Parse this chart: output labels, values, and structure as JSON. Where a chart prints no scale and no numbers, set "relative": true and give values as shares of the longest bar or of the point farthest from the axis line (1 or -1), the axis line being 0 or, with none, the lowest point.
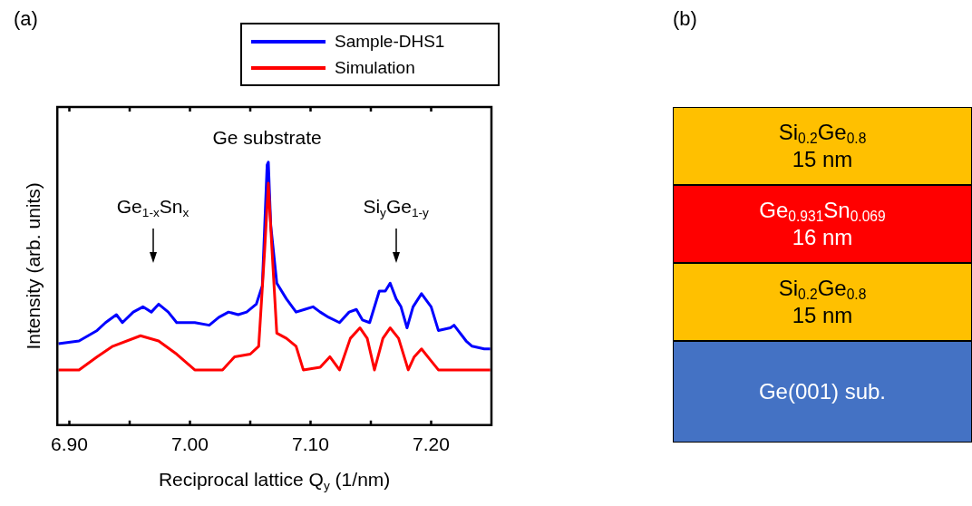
{
  "chart_data": [
    {
      "type": "line",
      "title": "(a)",
      "xlabel": "Reciprocal lattice Q$_{y}$ (1/nm)",
      "ylabel": "Intensity (arb. units)",
      "relative": true,
      "xlim": [
        6.89,
        7.25
      ],
      "xticks": [
        {
          "value": 6.9,
          "label": "6.90"
        },
        {
          "value": 6.95,
          "label": null
        },
        {
          "value": 7.0,
          "label": "7.00"
        },
        {
          "value": 7.05,
          "label": null
        },
        {
          "value": 7.1,
          "label": "7.10"
        },
        {
          "value": 7.15,
          "label": null
        },
        {
          "value": 7.2,
          "label": "7.20"
        }
      ],
      "legend": "top right",
      "grid": false,
      "marker": "none",
      "line_style": "solid",
      "series": [
        {
          "name": "Sample-DHS1",
          "color": "#0000ff",
          "x": [
            6.891,
            6.908,
            6.923,
            6.93,
            6.939,
            6.944,
            6.953,
            6.961,
            6.968,
            6.974,
            6.982,
            6.989,
            6.997,
            7.004,
            7.016,
            7.024,
            7.032,
            7.04,
            7.047,
            7.055,
            7.06,
            7.064,
            7.065,
            7.067,
            7.072,
            7.08,
            7.088,
            7.095,
            7.102,
            7.108,
            7.115,
            7.124,
            7.132,
            7.138,
            7.143,
            7.149,
            7.157,
            7.162,
            7.166,
            7.171,
            7.175,
            7.18,
            7.185,
            7.192,
            7.2,
            7.206,
            7.216,
            7.219,
            7.229,
            7.234,
            7.244,
            7.249
          ],
          "values": [
            0.31,
            0.32,
            0.36,
            0.39,
            0.42,
            0.39,
            0.43,
            0.45,
            0.43,
            0.46,
            0.43,
            0.39,
            0.39,
            0.39,
            0.38,
            0.41,
            0.43,
            0.42,
            0.43,
            0.46,
            0.53,
            0.99,
            1.0,
            0.76,
            0.54,
            0.48,
            0.43,
            0.44,
            0.45,
            0.43,
            0.41,
            0.39,
            0.43,
            0.44,
            0.4,
            0.39,
            0.51,
            0.51,
            0.54,
            0.48,
            0.45,
            0.37,
            0.45,
            0.5,
            0.45,
            0.36,
            0.37,
            0.38,
            0.32,
            0.3,
            0.29,
            0.29
          ]
        },
        {
          "name": "Simulation",
          "color": "#ff0000",
          "x": [
            6.891,
            6.908,
            6.923,
            6.936,
            6.959,
            6.974,
            6.989,
            7.004,
            7.027,
            7.037,
            7.05,
            7.057,
            7.062,
            7.065,
            7.068,
            7.072,
            7.08,
            7.088,
            7.094,
            7.108,
            7.116,
            7.124,
            7.133,
            7.141,
            7.147,
            7.153,
            7.16,
            7.166,
            7.173,
            7.181,
            7.186,
            7.192,
            7.199,
            7.206,
            7.227,
            7.249
          ],
          "values": [
            0.21,
            0.21,
            0.26,
            0.3,
            0.34,
            0.32,
            0.27,
            0.21,
            0.21,
            0.26,
            0.27,
            0.3,
            0.67,
            0.92,
            0.67,
            0.35,
            0.33,
            0.3,
            0.21,
            0.22,
            0.26,
            0.21,
            0.33,
            0.37,
            0.33,
            0.21,
            0.33,
            0.37,
            0.33,
            0.21,
            0.26,
            0.29,
            0.25,
            0.21,
            0.21,
            0.21
          ]
        }
      ],
      "annotations": [
        {
          "text": "Ge substrate",
          "x": 7.064,
          "y": 1.0
        },
        "Ge$_{1-x}$Sn$_{x}$",
        "Si$_{y}$Ge$_{1-y}$"
      ]
    },
    {
      "type": "other",
      "title": "(b)",
      "annotations": [
        "Si$_{0.2}$Ge$_{0.8}$\n15 nm",
        "Ge$_{0.931}$Sn$_{0.069}$\n16 nm",
        "Si$_{0.2}$Ge$_{0.8}$\n15 nm",
        "Ge(001) sub."
      ],
      "colors": [
        "#ffc000",
        "#ff0000",
        "#ffc000",
        "#4472c4"
      ]
    }
  ]
}
